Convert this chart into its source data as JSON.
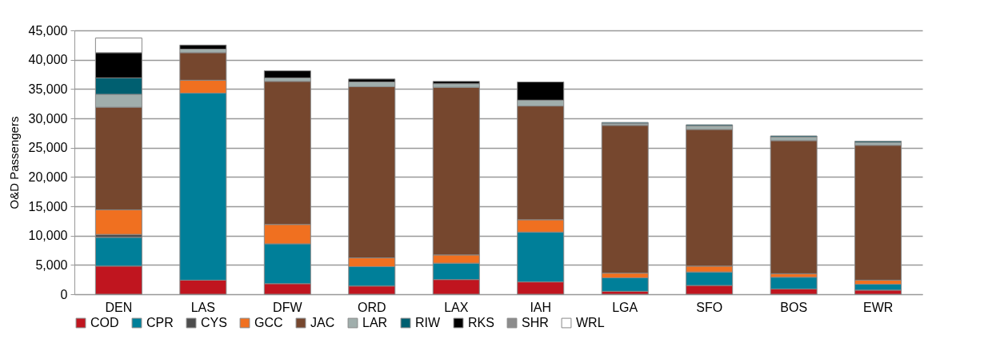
{
  "chart_data": {
    "type": "bar",
    "stacked": true,
    "ylabel": "O&D Passengers",
    "categories": [
      "DEN",
      "LAS",
      "DFW",
      "ORD",
      "LAX",
      "IAH",
      "LGA",
      "SFO",
      "BOS",
      "EWR"
    ],
    "ylim": [
      0,
      45000
    ],
    "yticks": [
      0,
      {
        "value": 5000,
        "label": "5,000"
      },
      {
        "value": 10000,
        "label": "10,000"
      },
      {
        "value": 15000,
        "label": "15,000"
      },
      {
        "value": 20000,
        "label": "20,000"
      },
      {
        "value": 25000,
        "label": "25,000"
      },
      {
        "value": 30000,
        "label": "30,000"
      },
      {
        "value": 35000,
        "label": "35,000"
      },
      {
        "value": 40000,
        "label": "40,000"
      },
      {
        "value": 45000,
        "label": "45,000"
      }
    ],
    "grid": "y",
    "legend": "bottom",
    "series": [
      {
        "name": "COD",
        "color": "#c0151f",
        "values": [
          4800,
          2400,
          1800,
          1400,
          2500,
          2100,
          500,
          1500,
          900,
          700
        ]
      },
      {
        "name": "CPR",
        "color": "#007f99",
        "values": [
          4900,
          31900,
          6800,
          3300,
          2800,
          8500,
          2300,
          2300,
          2000,
          1000
        ]
      },
      {
        "name": "CYS",
        "color": "#4d4d4d",
        "values": [
          500,
          null,
          null,
          null,
          null,
          null,
          null,
          null,
          null,
          null
        ]
      },
      {
        "name": "GCC",
        "color": "#f07020",
        "values": [
          4200,
          2200,
          3300,
          1500,
          1400,
          2100,
          800,
          1000,
          600,
          700
        ]
      },
      {
        "name": "JAC",
        "color": "#76472e",
        "values": [
          17500,
          4700,
          24400,
          29200,
          28600,
          19400,
          25200,
          23300,
          22700,
          23000
        ]
      },
      {
        "name": "LAR",
        "color": "#a0aeac",
        "values": [
          2200,
          600,
          600,
          800,
          600,
          1000,
          300,
          600,
          600,
          500
        ]
      },
      {
        "name": "RIW",
        "color": "#005f70",
        "values": [
          2800,
          null,
          null,
          null,
          null,
          null,
          200,
          200,
          200,
          200
        ]
      },
      {
        "name": "RKS",
        "color": "#000000",
        "values": [
          4300,
          700,
          1200,
          500,
          400,
          3100,
          null,
          null,
          null,
          null
        ]
      },
      {
        "name": "SHR",
        "color": "#8c8c8c",
        "values": [
          null,
          null,
          null,
          null,
          null,
          null,
          null,
          null,
          null,
          null
        ]
      },
      {
        "name": "WRL",
        "color": "#ffffff",
        "values": [
          2500,
          null,
          null,
          null,
          null,
          null,
          null,
          null,
          null,
          null
        ]
      }
    ]
  }
}
